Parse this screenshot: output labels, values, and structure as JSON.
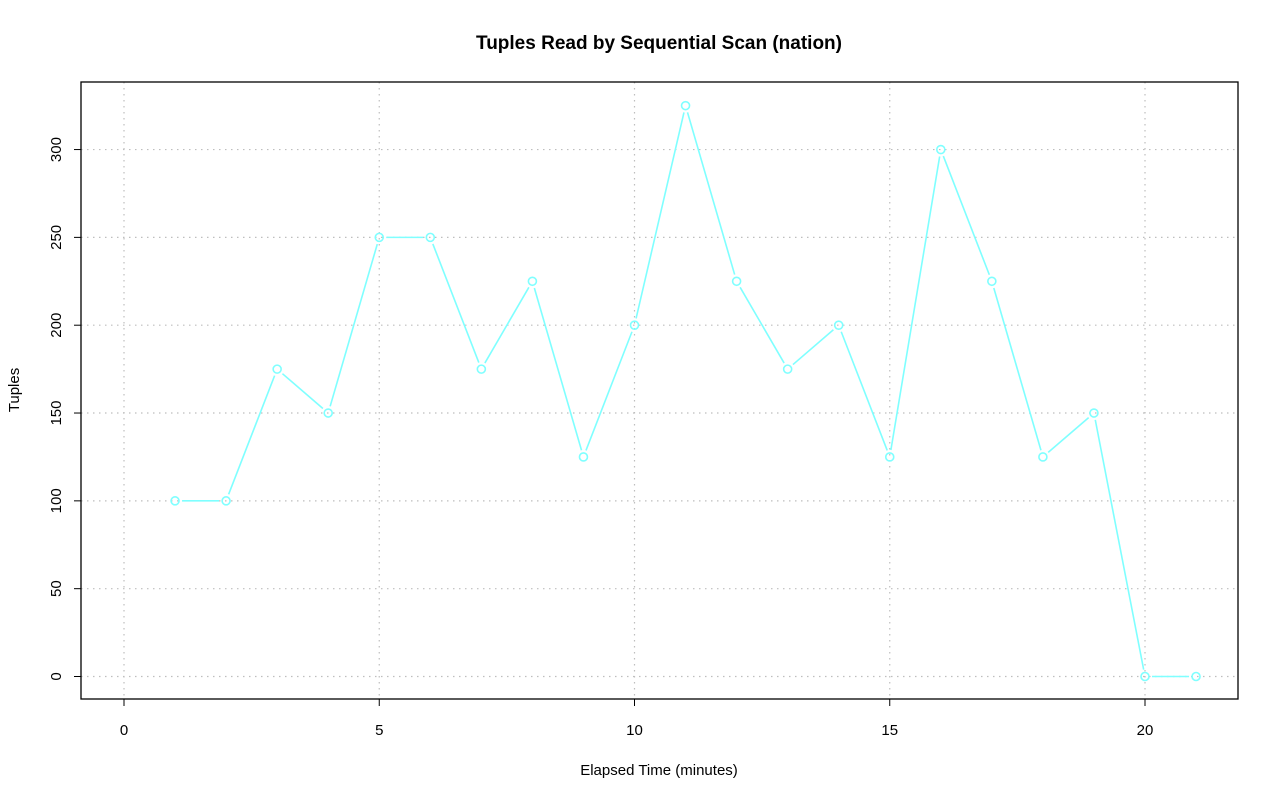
{
  "chart_data": {
    "type": "line",
    "title": "Tuples Read by Sequential Scan (nation)",
    "xlabel": "Elapsed Time (minutes)",
    "ylabel": "Tuples",
    "xlim": [
      0,
      21
    ],
    "ylim": [
      0,
      325
    ],
    "x_ticks": [
      0,
      5,
      10,
      15,
      20
    ],
    "y_ticks": [
      0,
      50,
      100,
      150,
      200,
      250,
      300
    ],
    "grid": true,
    "color": "#7fffff",
    "series": [
      {
        "x": [
          1,
          2,
          3,
          4,
          5,
          6,
          7,
          8,
          9,
          10,
          11,
          12,
          13,
          14,
          15,
          16,
          17,
          18,
          19,
          20,
          21
        ],
        "y": [
          100,
          100,
          175,
          150,
          250,
          250,
          175,
          225,
          125,
          200,
          325,
          225,
          175,
          200,
          125,
          300,
          225,
          125,
          150,
          0,
          0
        ]
      }
    ]
  }
}
